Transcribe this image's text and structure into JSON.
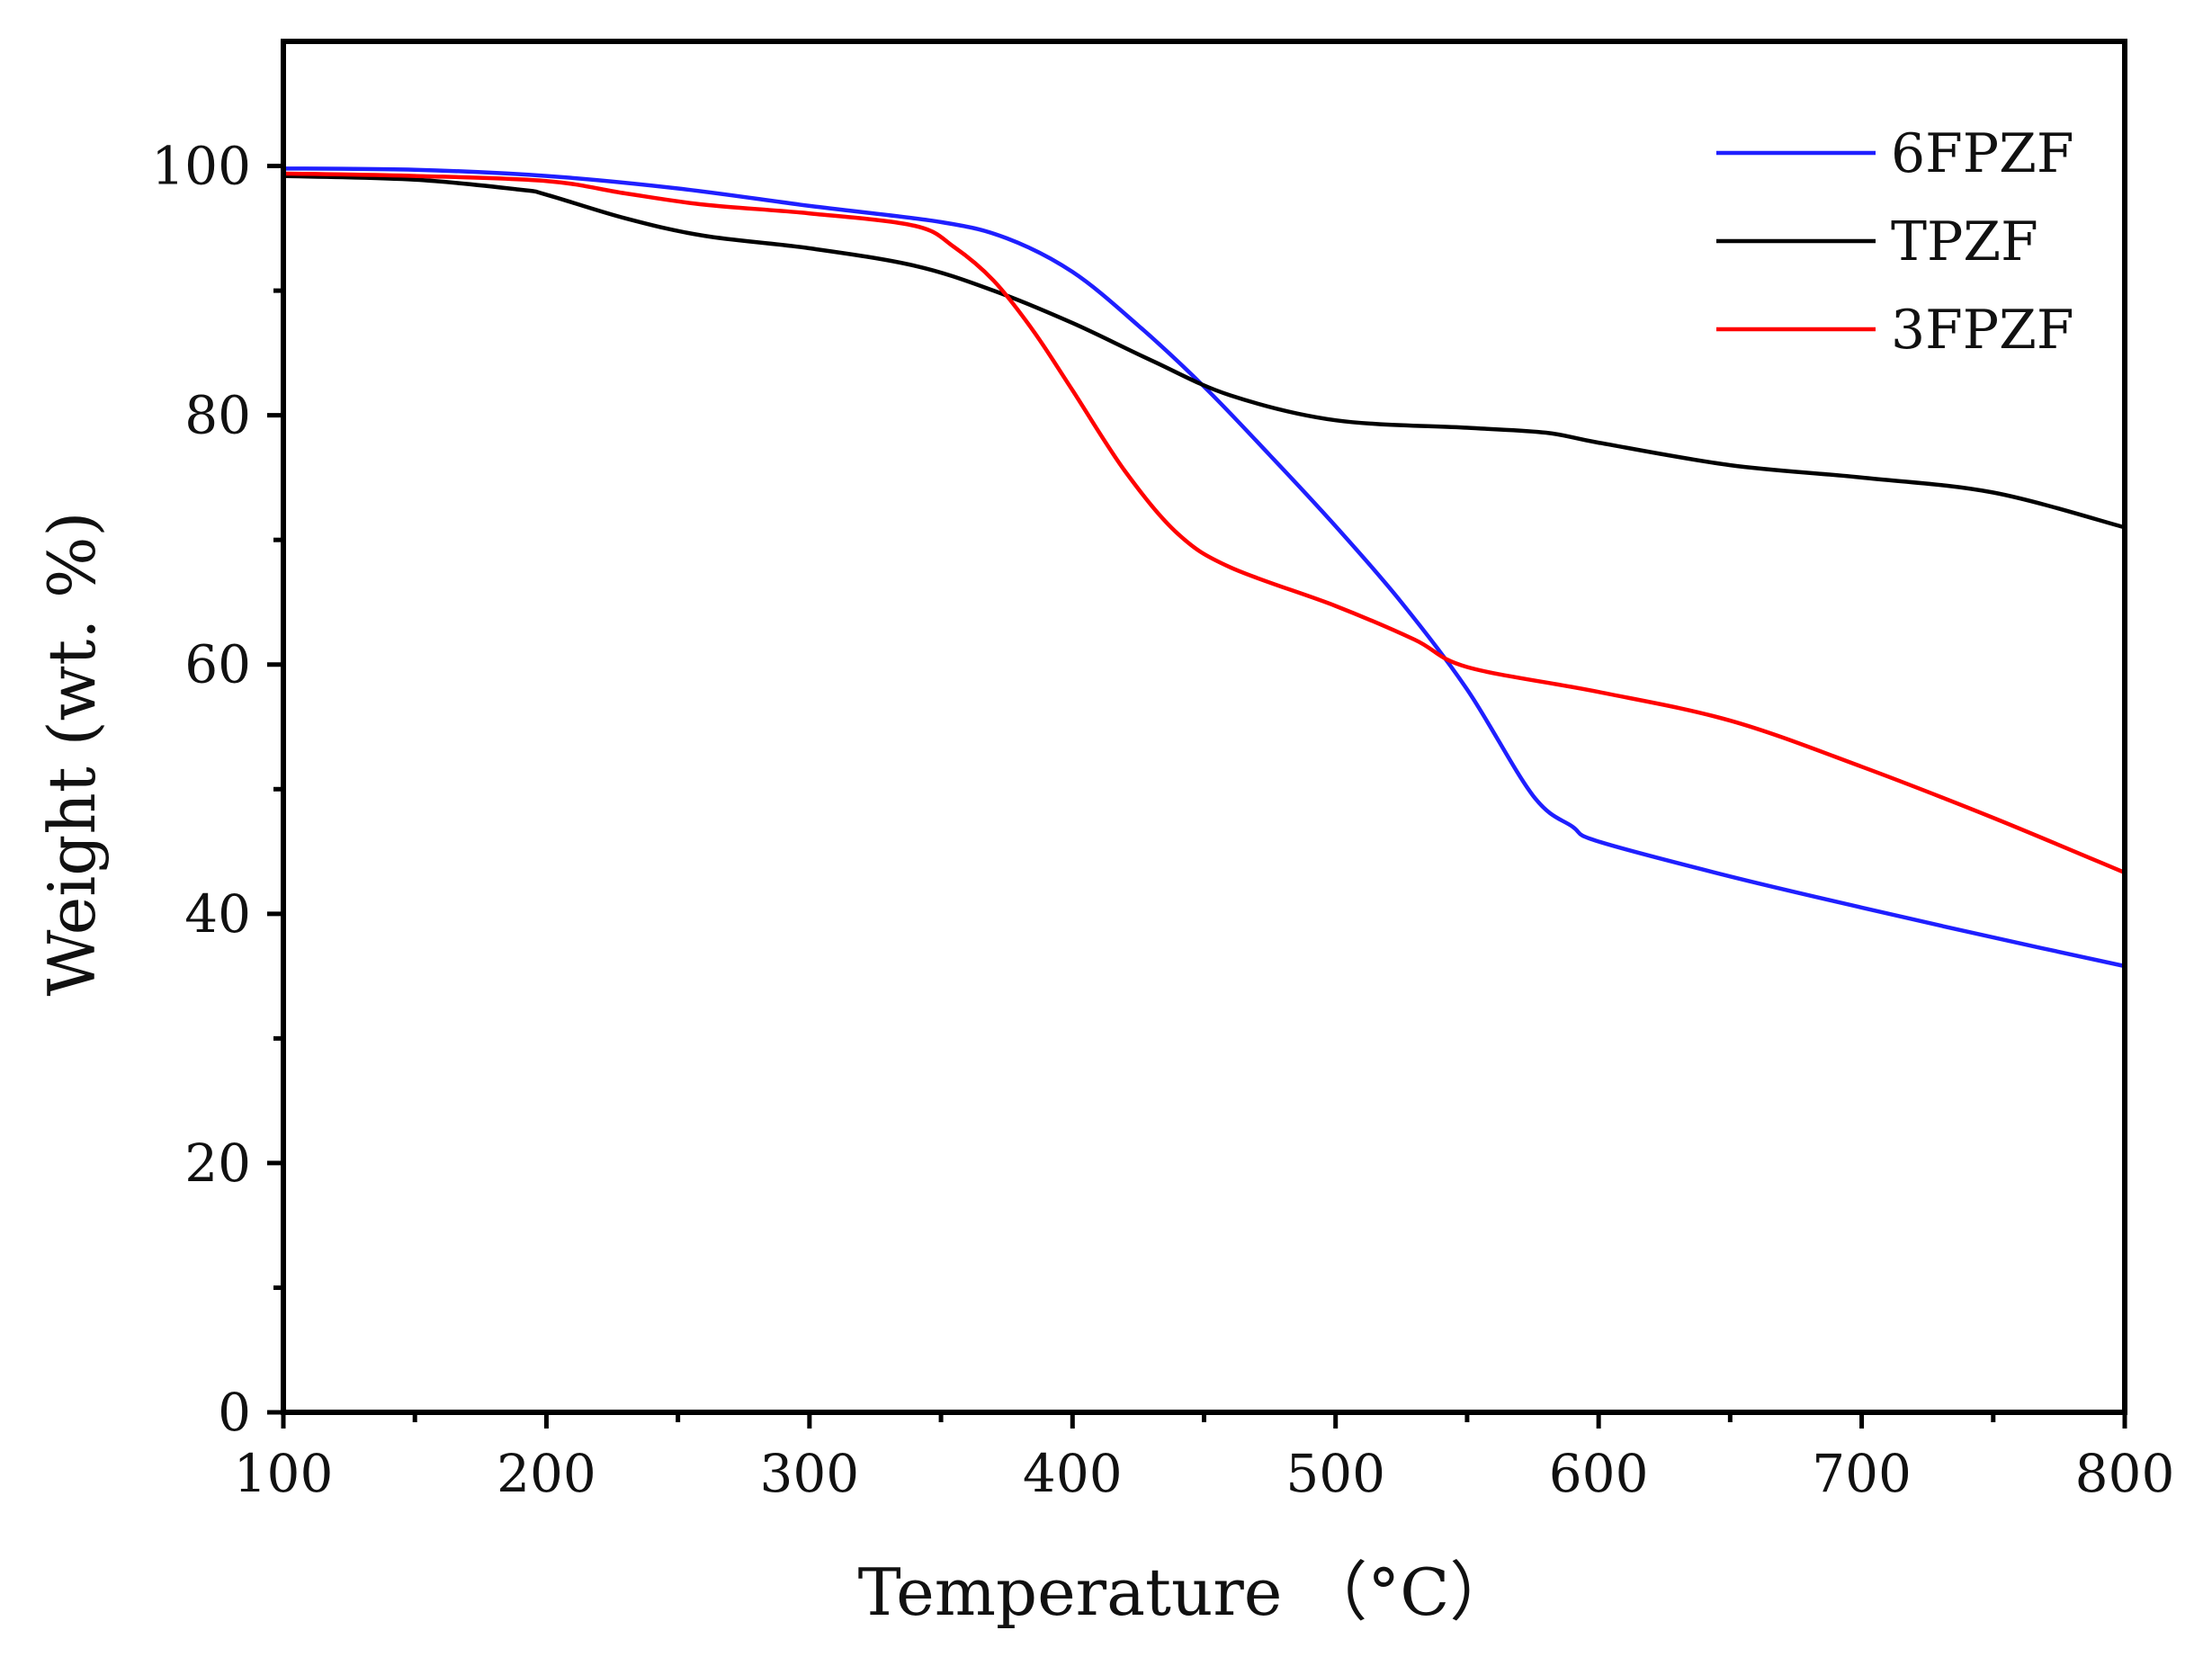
{
  "chart_data": {
    "type": "line",
    "title": "",
    "xlabel": "Temperature （°C）",
    "ylabel": "Weight (wt. %)",
    "xlim": [
      100,
      800
    ],
    "ylim": [
      0,
      110
    ],
    "xticks": [
      100,
      200,
      300,
      400,
      500,
      600,
      700,
      800
    ],
    "yticks": [
      0,
      20,
      40,
      60,
      80,
      100
    ],
    "grid": false,
    "legend_position": "top-right",
    "series": [
      {
        "name": "6FPZF",
        "color": "#1f1fff",
        "x": [
          100,
          150,
          200,
          250,
          300,
          350,
          375,
          400,
          425,
          450,
          475,
          500,
          525,
          550,
          575,
          590,
          600,
          650,
          700,
          750,
          800
        ],
        "y": [
          99.8,
          99.7,
          99.2,
          98.2,
          96.8,
          95.5,
          94.2,
          91.5,
          87.2,
          82.3,
          76.8,
          71.1,
          65.0,
          58.0,
          49.5,
          47.0,
          45.8,
          43.0,
          40.5,
          38.1,
          35.8
        ]
      },
      {
        "name": "TPZF",
        "color": "#000000",
        "x": [
          100,
          150,
          190,
          200,
          230,
          260,
          300,
          340,
          370,
          400,
          430,
          460,
          500,
          550,
          580,
          600,
          650,
          700,
          750,
          800
        ],
        "y": [
          99.2,
          98.9,
          98.1,
          97.7,
          95.8,
          94.4,
          93.4,
          92.0,
          90.0,
          87.4,
          84.4,
          81.6,
          79.6,
          79.0,
          78.6,
          77.8,
          76.0,
          75.0,
          73.8,
          71.0
        ]
      },
      {
        "name": "3FPZF",
        "color": "#ff0000",
        "x": [
          100,
          150,
          200,
          230,
          260,
          300,
          340,
          355,
          370,
          385,
          400,
          420,
          440,
          460,
          500,
          530,
          550,
          600,
          650,
          700,
          750,
          800
        ],
        "y": [
          99.4,
          99.2,
          98.8,
          97.8,
          96.9,
          96.2,
          95.2,
          93.5,
          90.8,
          86.8,
          82.0,
          75.5,
          70.5,
          67.8,
          64.7,
          62.0,
          59.8,
          57.8,
          55.5,
          51.8,
          47.7,
          43.3
        ]
      }
    ]
  }
}
